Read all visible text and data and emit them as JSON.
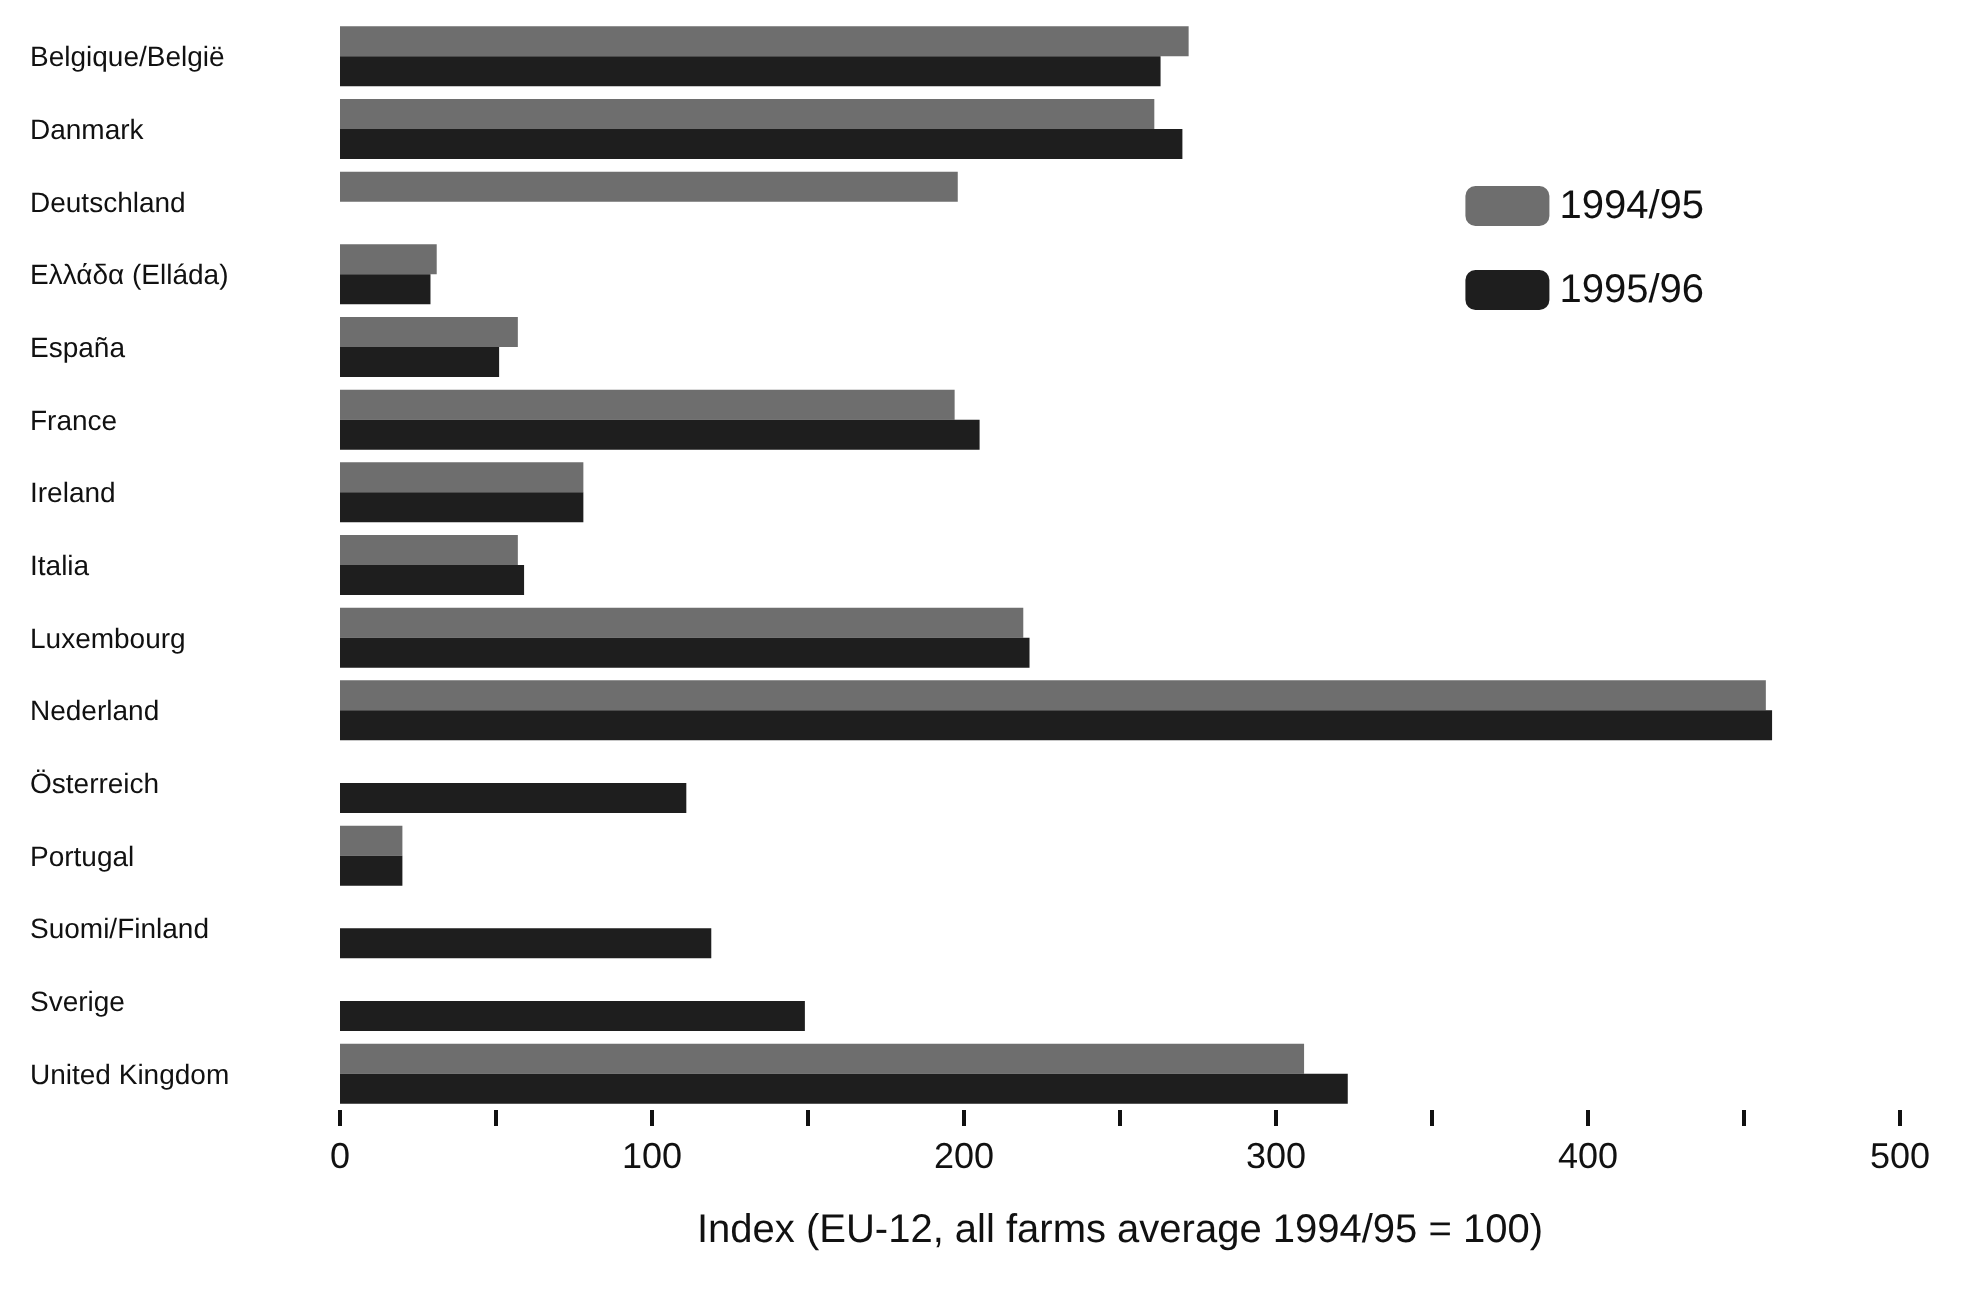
{
  "chart_data": {
    "type": "bar",
    "orientation": "horizontal",
    "xlabel": "Index (EU-12, all farms average 1994/95 = 100)",
    "categories": [
      "Belgique/België",
      "Danmark",
      "Deutschland",
      "Ελλάδα (Elláda)",
      "España",
      "France",
      "Ireland",
      "Italia",
      "Luxembourg",
      "Nederland",
      "Österreich",
      "Portugal",
      "Suomi/Finland",
      "Sverige",
      "United Kingdom"
    ],
    "series": [
      {
        "name": "1994/95",
        "color": "#6e6e6e",
        "values": [
          272,
          261,
          198,
          31,
          57,
          197,
          78,
          57,
          219,
          457,
          null,
          20,
          null,
          null,
          309
        ]
      },
      {
        "name": "1995/96",
        "color": "#1e1e1e",
        "values": [
          263,
          270,
          null,
          29,
          51,
          205,
          78,
          59,
          221,
          459,
          111,
          20,
          119,
          149,
          323
        ]
      }
    ],
    "xlim": [
      0,
      500
    ],
    "xticks": [
      0,
      {
        "value": 50,
        "label": null
      },
      100,
      {
        "value": 150,
        "label": null
      },
      200,
      {
        "value": 250,
        "label": null
      },
      300,
      {
        "value": 350,
        "label": null
      },
      400,
      {
        "value": 450,
        "label": null
      },
      500
    ],
    "grid": false,
    "legend": "top right"
  }
}
